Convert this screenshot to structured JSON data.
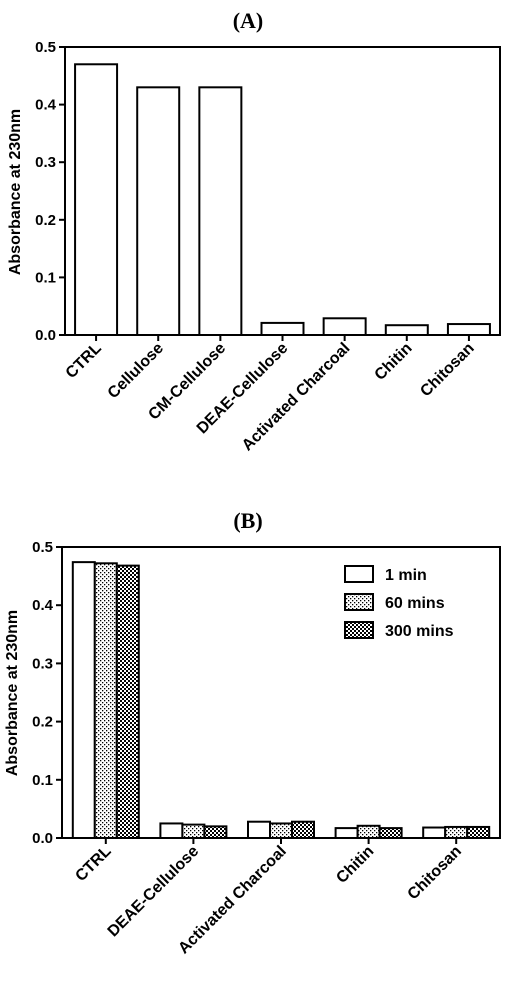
{
  "chart_data": [
    {
      "panel_label": "(A)",
      "type": "bar",
      "ylabel": "Absorbance at 230nm",
      "ylim": [
        0,
        0.5
      ],
      "yticks": [
        "0.0",
        "0.1",
        "0.2",
        "0.3",
        "0.4",
        "0.5"
      ],
      "categories": [
        "CTRL",
        "Cellulose",
        "CM-Cellulose",
        "DEAE-Cellulose",
        "Activated Charcoal",
        "Chitin",
        "Chitosan"
      ],
      "values": [
        0.47,
        0.43,
        0.43,
        0.021,
        0.029,
        0.017,
        0.019
      ]
    },
    {
      "panel_label": "(B)",
      "type": "bar",
      "ylabel": "Absorbance at 230nm",
      "ylim": [
        0,
        0.5
      ],
      "yticks": [
        "0.0",
        "0.1",
        "0.2",
        "0.3",
        "0.4",
        "0.5"
      ],
      "legend_position": "top-right",
      "categories": [
        "CTRL",
        "DEAE-Cellulose",
        "Activated Charcoal",
        "Chitin",
        "Chitosan"
      ],
      "series": [
        {
          "name": "1 min",
          "pattern": "solid-white",
          "values": [
            0.474,
            0.025,
            0.028,
            0.017,
            0.018
          ]
        },
        {
          "name": "60 mins",
          "pattern": "dotted",
          "values": [
            0.472,
            0.023,
            0.025,
            0.021,
            0.019
          ]
        },
        {
          "name": "300 mins",
          "pattern": "checkered",
          "values": [
            0.468,
            0.02,
            0.028,
            0.017,
            0.019
          ]
        }
      ]
    }
  ]
}
